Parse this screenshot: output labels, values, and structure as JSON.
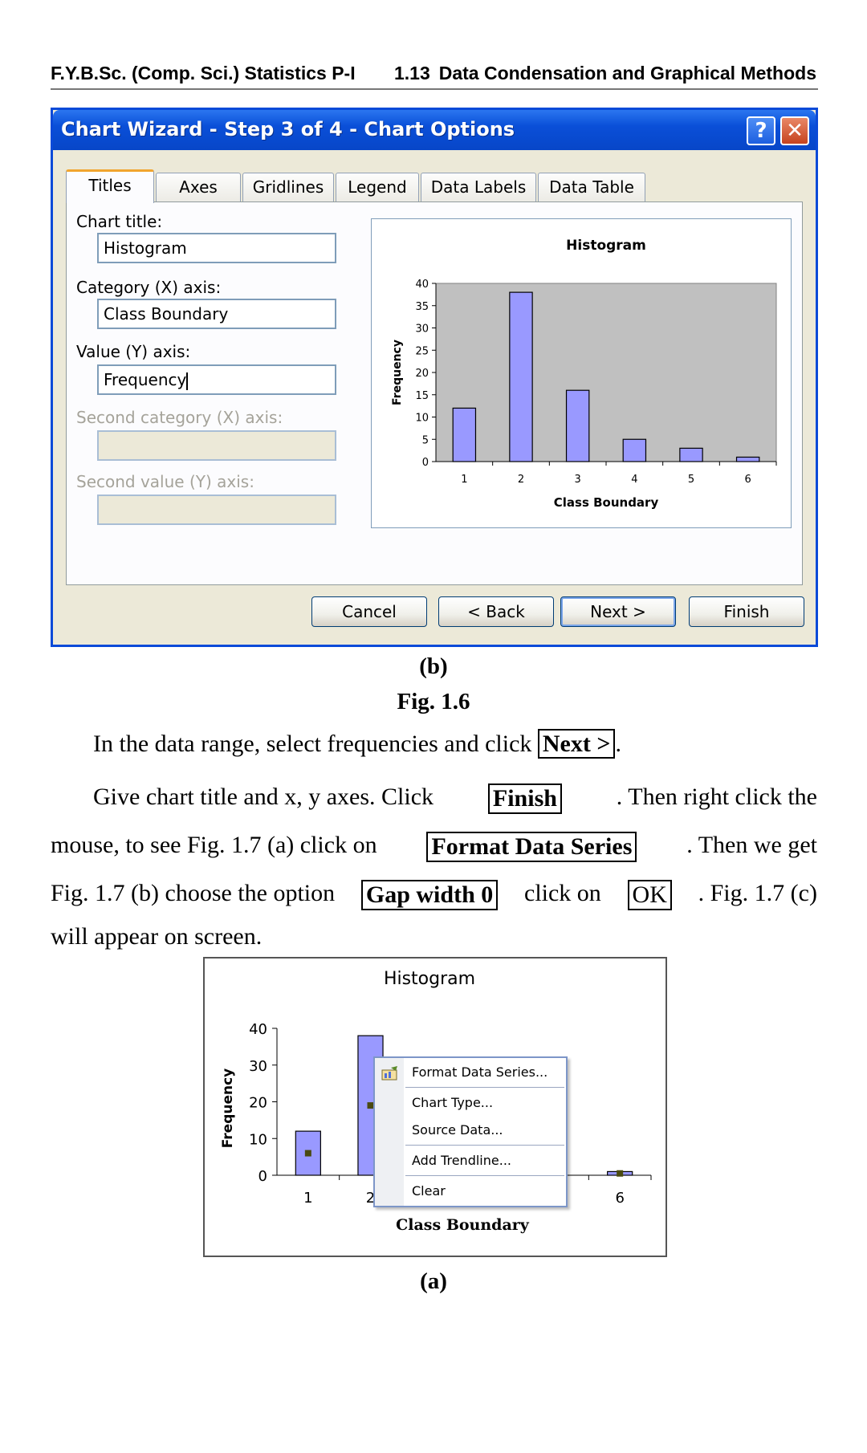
{
  "running_header": {
    "left": "F.Y.B.Sc. (Comp. Sci.) Statistics P-I",
    "page": "1.13",
    "right": "Data Condensation and Graphical Methods"
  },
  "dialog": {
    "title": "Chart Wizard - Step 3 of 4 - Chart Options",
    "help_glyph": "?",
    "close_glyph": "✕",
    "tabs": [
      "Titles",
      "Axes",
      "Gridlines",
      "Legend",
      "Data Labels",
      "Data Table"
    ],
    "fields": {
      "chart_title_label": "Chart title:",
      "chart_title_value": "Histogram",
      "category_label": "Category (X) axis:",
      "category_value": "Class Boundary",
      "value_label": "Value (Y) axis:",
      "value_value": "Frequency",
      "second_category_label": "Second category (X) axis:",
      "second_value_label": "Second value (Y) axis:"
    },
    "buttons": {
      "cancel": "Cancel",
      "back": "< Back",
      "next": "Next >",
      "finish": "Finish"
    }
  },
  "captions": {
    "fig_b": "(b)",
    "fig_label": "Fig. 1.6",
    "fig_a": "(a)"
  },
  "body_text": {
    "p1_pre": "In the data range, select frequencies and click ",
    "p1_key": "Next >",
    "p1_post": ".",
    "p2_pre": "Give chart title and x, y axes. Click ",
    "p2_key": "Finish",
    "p2_post": ". Then right click the",
    "p3_pre": "mouse, to see Fig. 1.7 (a) click on ",
    "p3_key": "Format Data Series",
    "p3_post": ". Then we get",
    "p4_pre": "Fig. 1.7 (b) choose the option ",
    "p4_key": "Gap width 0",
    "p4_mid": "click on ",
    "p4_key2": "OK",
    "p4_post": ". Fig. 1.7 (c)",
    "p5": "will appear on screen."
  },
  "context_menu": {
    "items": [
      "Format Data Series...",
      "Chart Type...",
      "Source Data...",
      "Add Trendline...",
      "Clear"
    ]
  },
  "colors": {
    "bar_fill": "#9999ff",
    "plot_area": "#c0c0c0",
    "titlebar": "#0a4fd8"
  },
  "chart_data": [
    {
      "type": "bar",
      "title": "Histogram",
      "xlabel": "Class Boundary",
      "ylabel": "Frequency",
      "categories": [
        "1",
        "2",
        "3",
        "4",
        "5",
        "6"
      ],
      "values": [
        12,
        38,
        16,
        5,
        3,
        1
      ],
      "yticks": [
        "0",
        "5",
        "10",
        "15",
        "20",
        "25",
        "30",
        "35",
        "40"
      ],
      "ylim": [
        0,
        40
      ],
      "plot_background": "#c0c0c0",
      "legend": "none"
    },
    {
      "type": "bar",
      "title": "Histogram",
      "xlabel": "Class Boundary",
      "ylabel": "Frequency",
      "categories": [
        "1",
        "2",
        "6"
      ],
      "values": [
        12,
        38,
        1
      ],
      "yticks": [
        "0",
        "10",
        "20",
        "30",
        "40"
      ],
      "ylim": [
        0,
        40
      ],
      "plot_background": "#ffffff",
      "legend": "none"
    }
  ]
}
